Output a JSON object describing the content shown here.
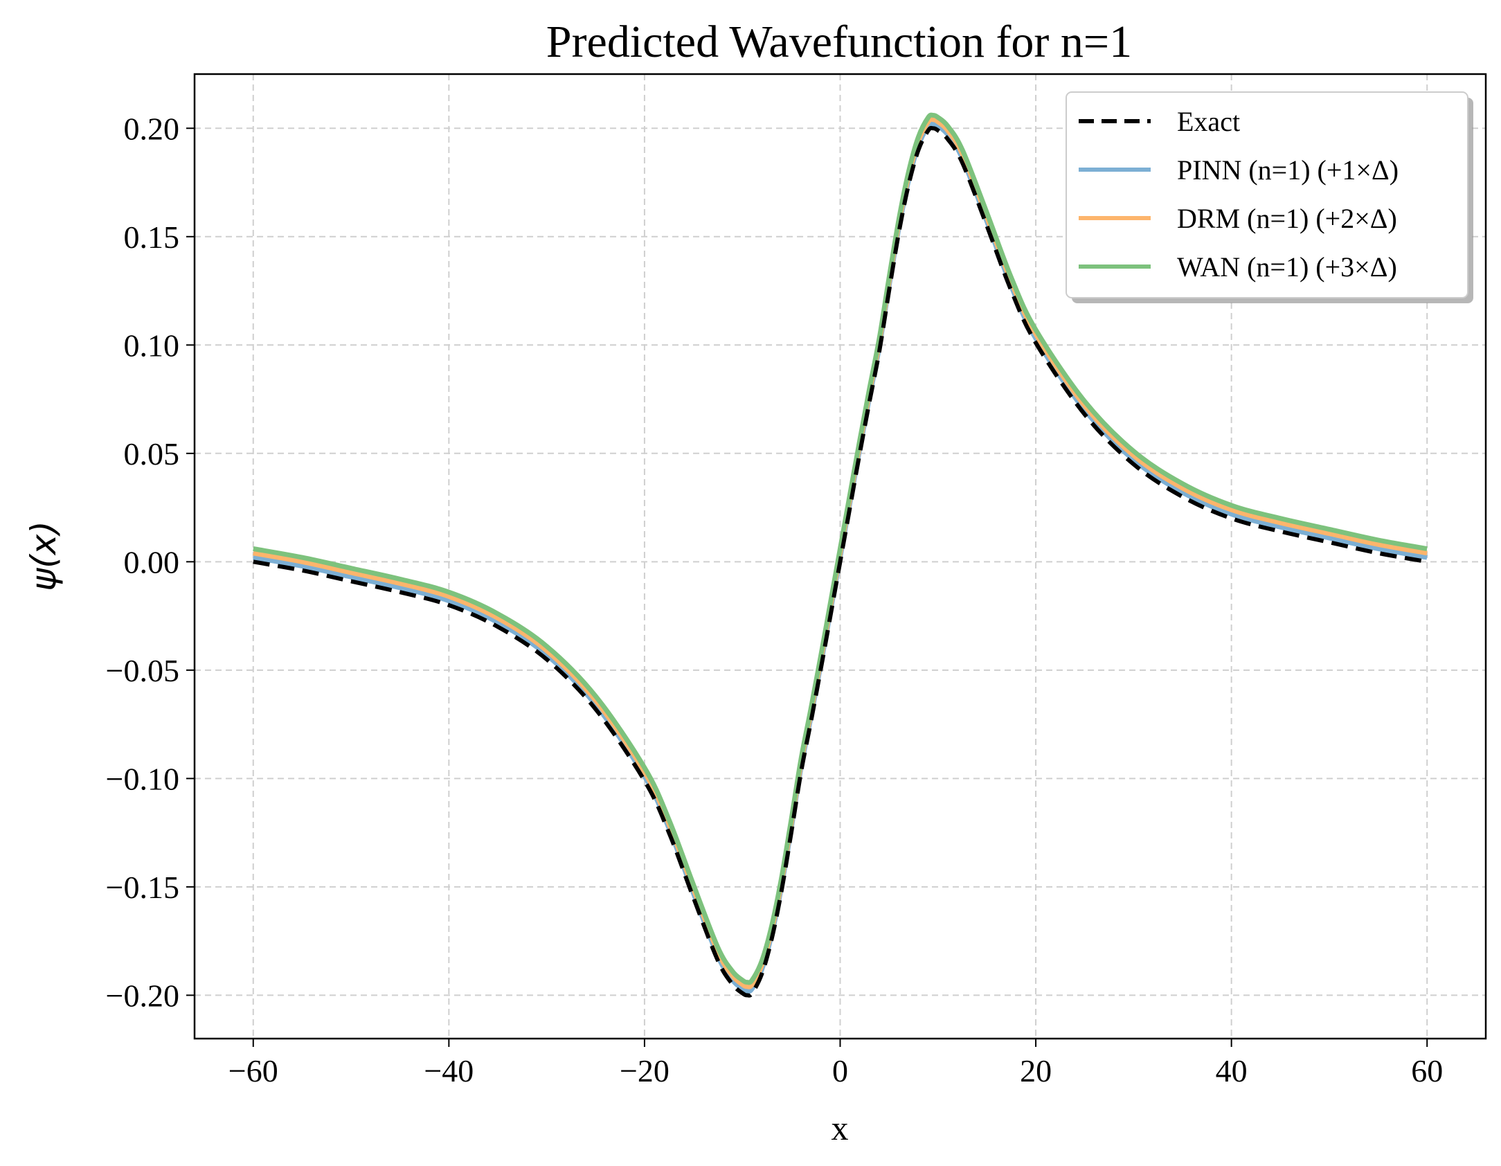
{
  "chart_data": {
    "type": "line",
    "title": "Predicted Wavefunction for n=1",
    "xlabel": "x",
    "ylabel": "ψ(x)",
    "xlim": [
      -66,
      66
    ],
    "ylim": [
      -0.22,
      0.225
    ],
    "xticks": [
      -60,
      -40,
      -20,
      0,
      20,
      40,
      60
    ],
    "xtick_labels": [
      "−60",
      "−40",
      "−20",
      "0",
      "20",
      "40",
      "60"
    ],
    "yticks": [
      -0.2,
      -0.15,
      -0.1,
      -0.05,
      0.0,
      0.05,
      0.1,
      0.15,
      0.2
    ],
    "ytick_labels": [
      "−0.20",
      "−0.15",
      "−0.10",
      "−0.05",
      "0.00",
      "0.05",
      "0.10",
      "0.15",
      "0.20"
    ],
    "grid": true,
    "legend_position": "top-right",
    "x": [
      -60,
      -55,
      -50,
      -45,
      -40,
      -35,
      -30,
      -25,
      -20,
      -17.5,
      -15,
      -12.5,
      -11,
      -10,
      -9.5,
      -9,
      -8,
      -7,
      -6,
      -5,
      -4,
      -3,
      -2,
      -1,
      0,
      1,
      2,
      3,
      4,
      5,
      6,
      7,
      8,
      9,
      9.5,
      10,
      11,
      12.5,
      15,
      17.5,
      20,
      25,
      30,
      35,
      40,
      45,
      50,
      55,
      60
    ],
    "series": [
      {
        "name": "Exact",
        "style": "dashed",
        "color": "#000000",
        "values": [
          0.0,
          -0.004,
          -0.009,
          -0.014,
          -0.02,
          -0.03,
          -0.045,
          -0.068,
          -0.101,
          -0.125,
          -0.155,
          -0.184,
          -0.195,
          -0.199,
          -0.2,
          -0.199,
          -0.19,
          -0.174,
          -0.152,
          -0.125,
          -0.097,
          -0.074,
          -0.05,
          -0.025,
          0.0,
          0.025,
          0.05,
          0.074,
          0.097,
          0.125,
          0.152,
          0.174,
          0.19,
          0.199,
          0.2,
          0.199,
          0.195,
          0.184,
          0.155,
          0.125,
          0.101,
          0.068,
          0.045,
          0.03,
          0.02,
          0.014,
          0.009,
          0.004,
          0.0
        ]
      },
      {
        "name": "PINN (n=1) (+1×Δ)",
        "style": "solid",
        "color": "#7cafd4",
        "values": [
          0.002,
          -0.002,
          -0.007,
          -0.012,
          -0.018,
          -0.028,
          -0.043,
          -0.066,
          -0.099,
          -0.123,
          -0.153,
          -0.182,
          -0.193,
          -0.197,
          -0.198,
          -0.197,
          -0.188,
          -0.172,
          -0.15,
          -0.123,
          -0.095,
          -0.072,
          -0.048,
          -0.023,
          0.002,
          0.027,
          0.052,
          0.076,
          0.099,
          0.127,
          0.154,
          0.176,
          0.192,
          0.201,
          0.202,
          0.201,
          0.197,
          0.186,
          0.157,
          0.127,
          0.103,
          0.07,
          0.047,
          0.032,
          0.022,
          0.016,
          0.011,
          0.006,
          0.002
        ]
      },
      {
        "name": "DRM (n=1) (+2×Δ)",
        "style": "solid",
        "color": "#fdb56c",
        "values": [
          0.004,
          0.0,
          -0.005,
          -0.01,
          -0.016,
          -0.026,
          -0.041,
          -0.064,
          -0.097,
          -0.121,
          -0.151,
          -0.18,
          -0.191,
          -0.195,
          -0.196,
          -0.195,
          -0.186,
          -0.17,
          -0.148,
          -0.121,
          -0.093,
          -0.07,
          -0.046,
          -0.021,
          0.004,
          0.029,
          0.054,
          0.078,
          0.101,
          0.129,
          0.156,
          0.178,
          0.194,
          0.203,
          0.204,
          0.203,
          0.199,
          0.188,
          0.159,
          0.129,
          0.105,
          0.072,
          0.049,
          0.034,
          0.024,
          0.018,
          0.013,
          0.008,
          0.004
        ]
      },
      {
        "name": "WAN (n=1) (+3×Δ)",
        "style": "solid",
        "color": "#7dc27d",
        "values": [
          0.006,
          0.002,
          -0.003,
          -0.008,
          -0.014,
          -0.024,
          -0.039,
          -0.062,
          -0.095,
          -0.119,
          -0.149,
          -0.178,
          -0.189,
          -0.193,
          -0.194,
          -0.193,
          -0.184,
          -0.168,
          -0.146,
          -0.119,
          -0.091,
          -0.068,
          -0.044,
          -0.019,
          0.006,
          0.031,
          0.056,
          0.08,
          0.103,
          0.131,
          0.158,
          0.18,
          0.196,
          0.205,
          0.206,
          0.205,
          0.201,
          0.19,
          0.161,
          0.131,
          0.107,
          0.074,
          0.051,
          0.036,
          0.026,
          0.02,
          0.015,
          0.01,
          0.006
        ]
      }
    ]
  }
}
